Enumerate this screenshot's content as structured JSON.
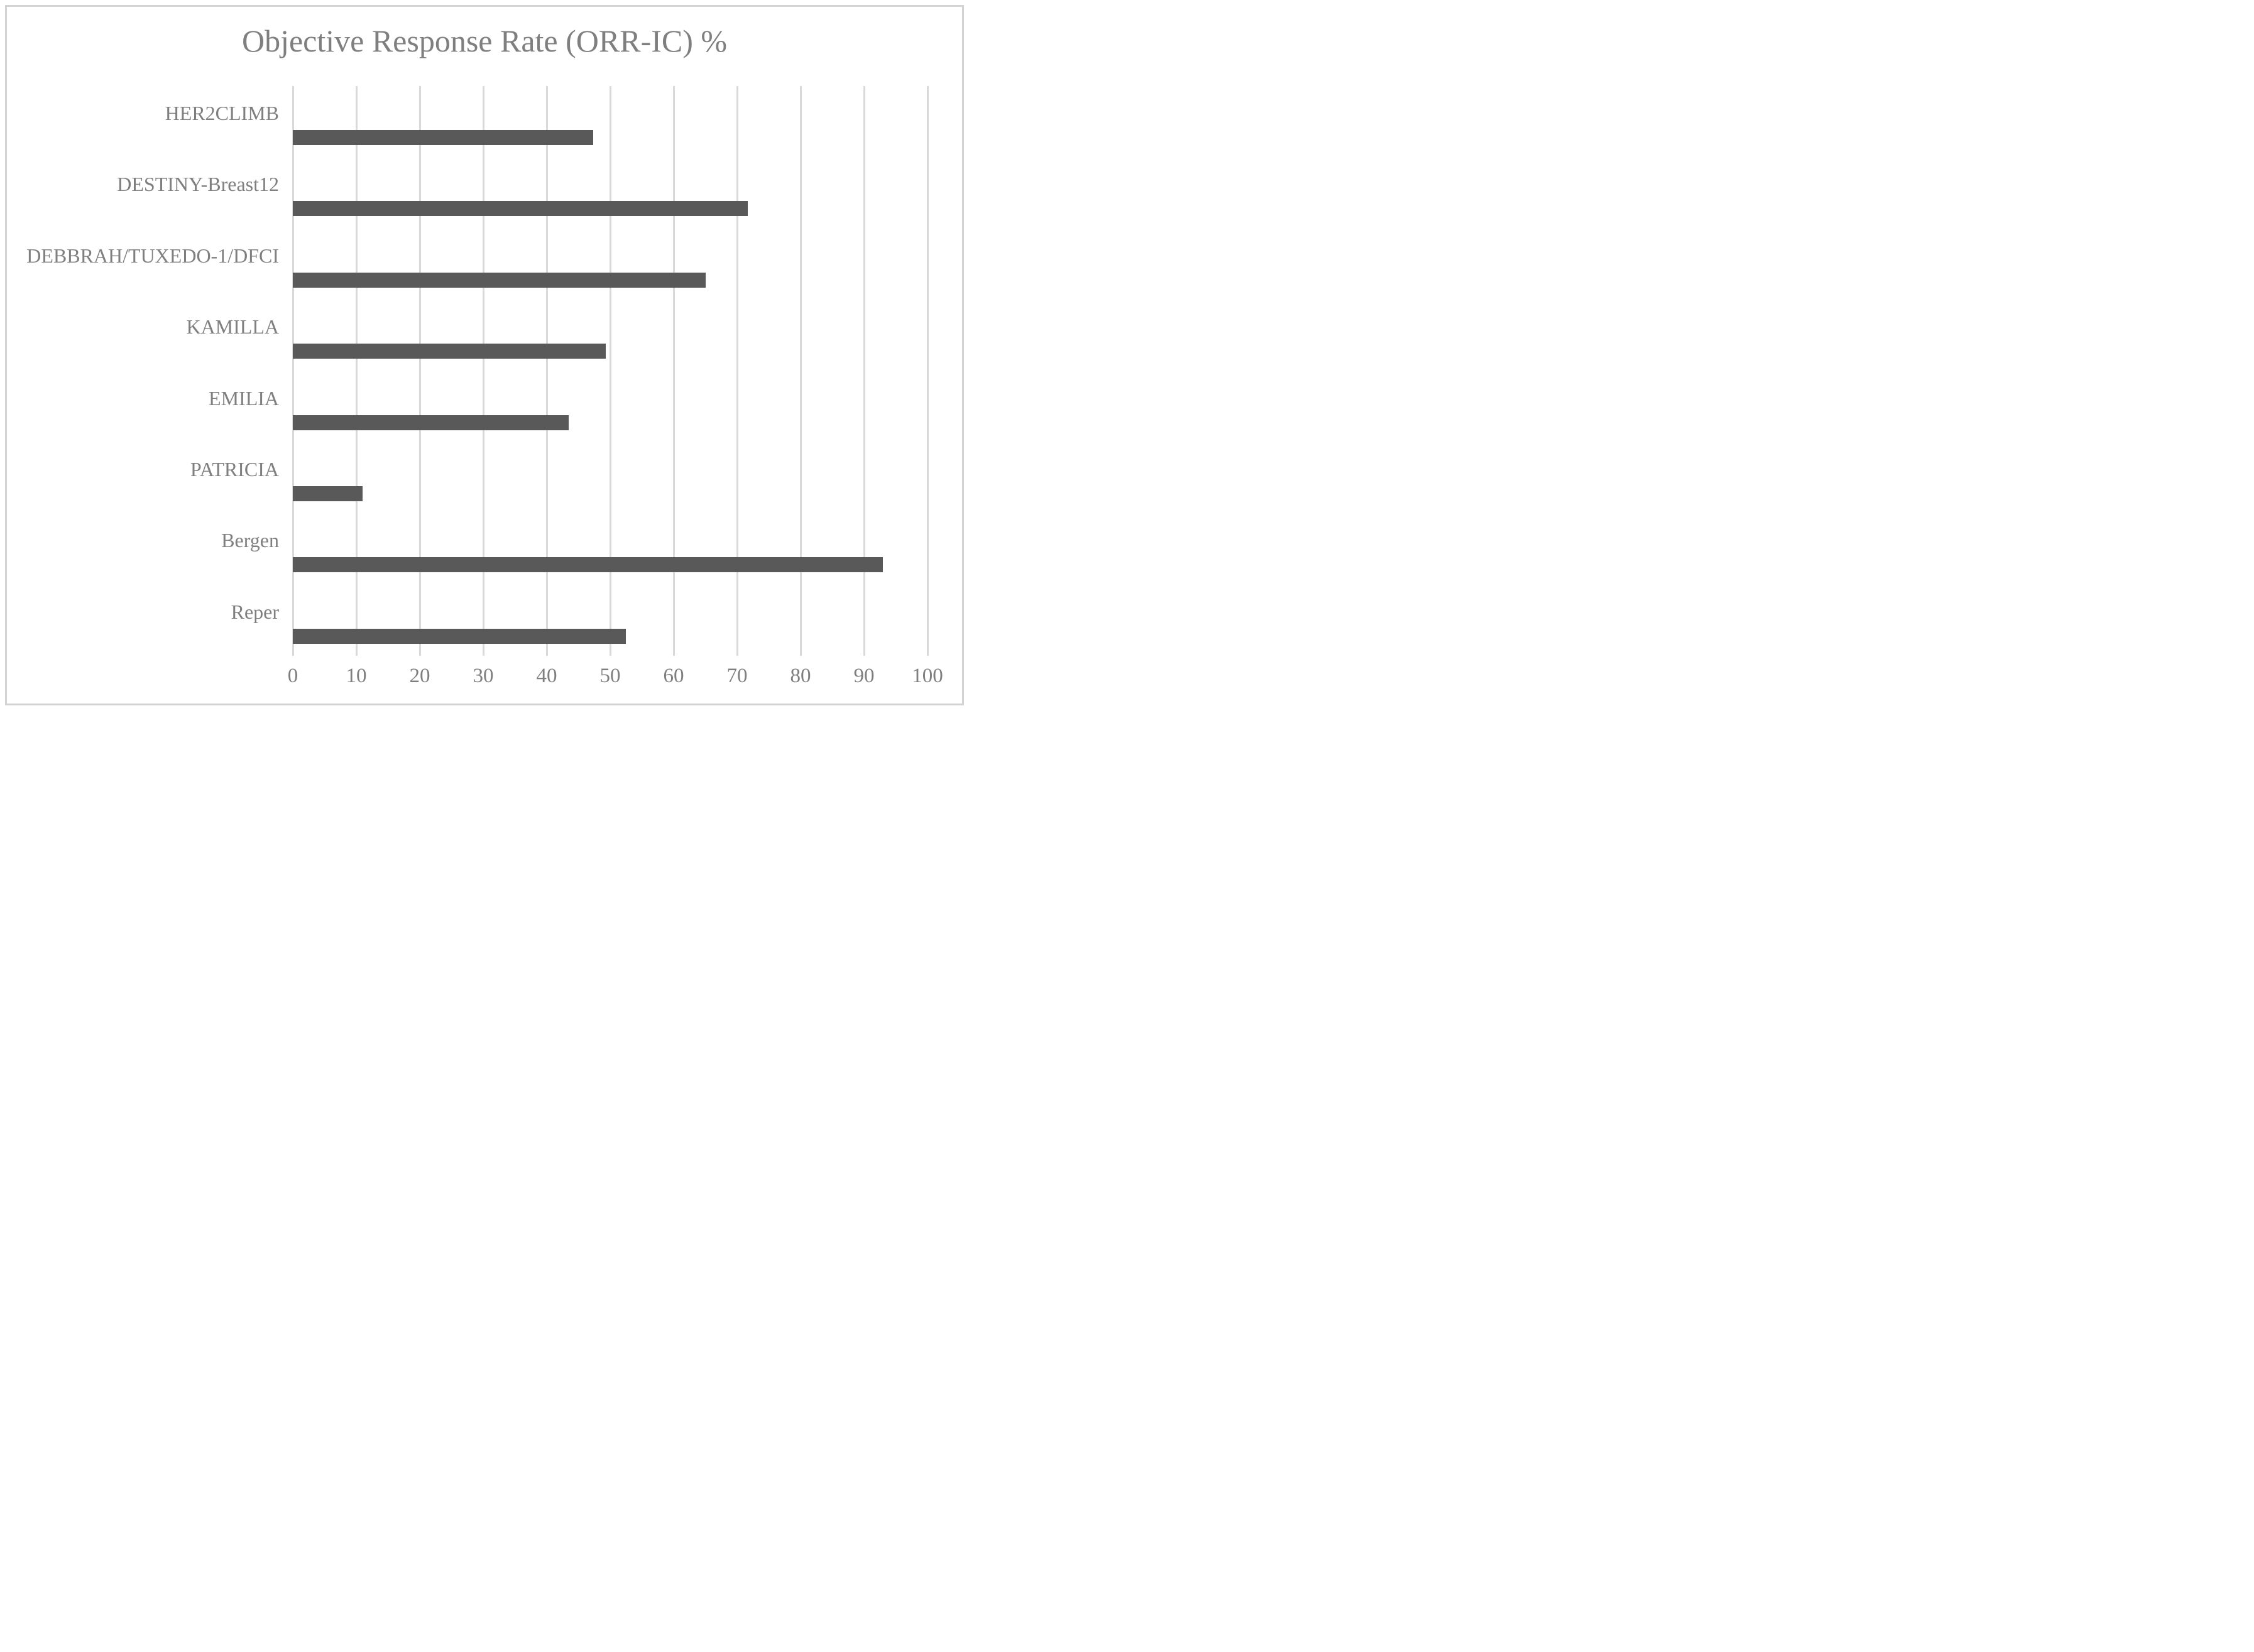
{
  "chart_data": {
    "type": "bar",
    "orientation": "horizontal",
    "title": "Objective Response Rate (ORR-IC) %",
    "categories": [
      "HER2CLIMB",
      "DESTINY-Breast12",
      "DEBBRAH/TUXEDO-1/DFCI",
      "KAMILLA",
      "EMILIA",
      "PATRICIA",
      "Bergen",
      "Reper"
    ],
    "values": [
      47.3,
      71.7,
      65,
      49.3,
      43.5,
      11,
      93,
      52.5
    ],
    "xlabel": "",
    "ylabel": "",
    "xlim": [
      0,
      100
    ],
    "xticks": [
      0,
      10,
      20,
      30,
      40,
      50,
      60,
      70,
      80,
      90,
      100
    ],
    "grid": true,
    "legend": false,
    "colors": {
      "bar": "#595959",
      "gridline": "#d9d9d9",
      "text": "#7f7f7f",
      "frame_border": "#d3d3d3",
      "background": "#ffffff"
    }
  }
}
